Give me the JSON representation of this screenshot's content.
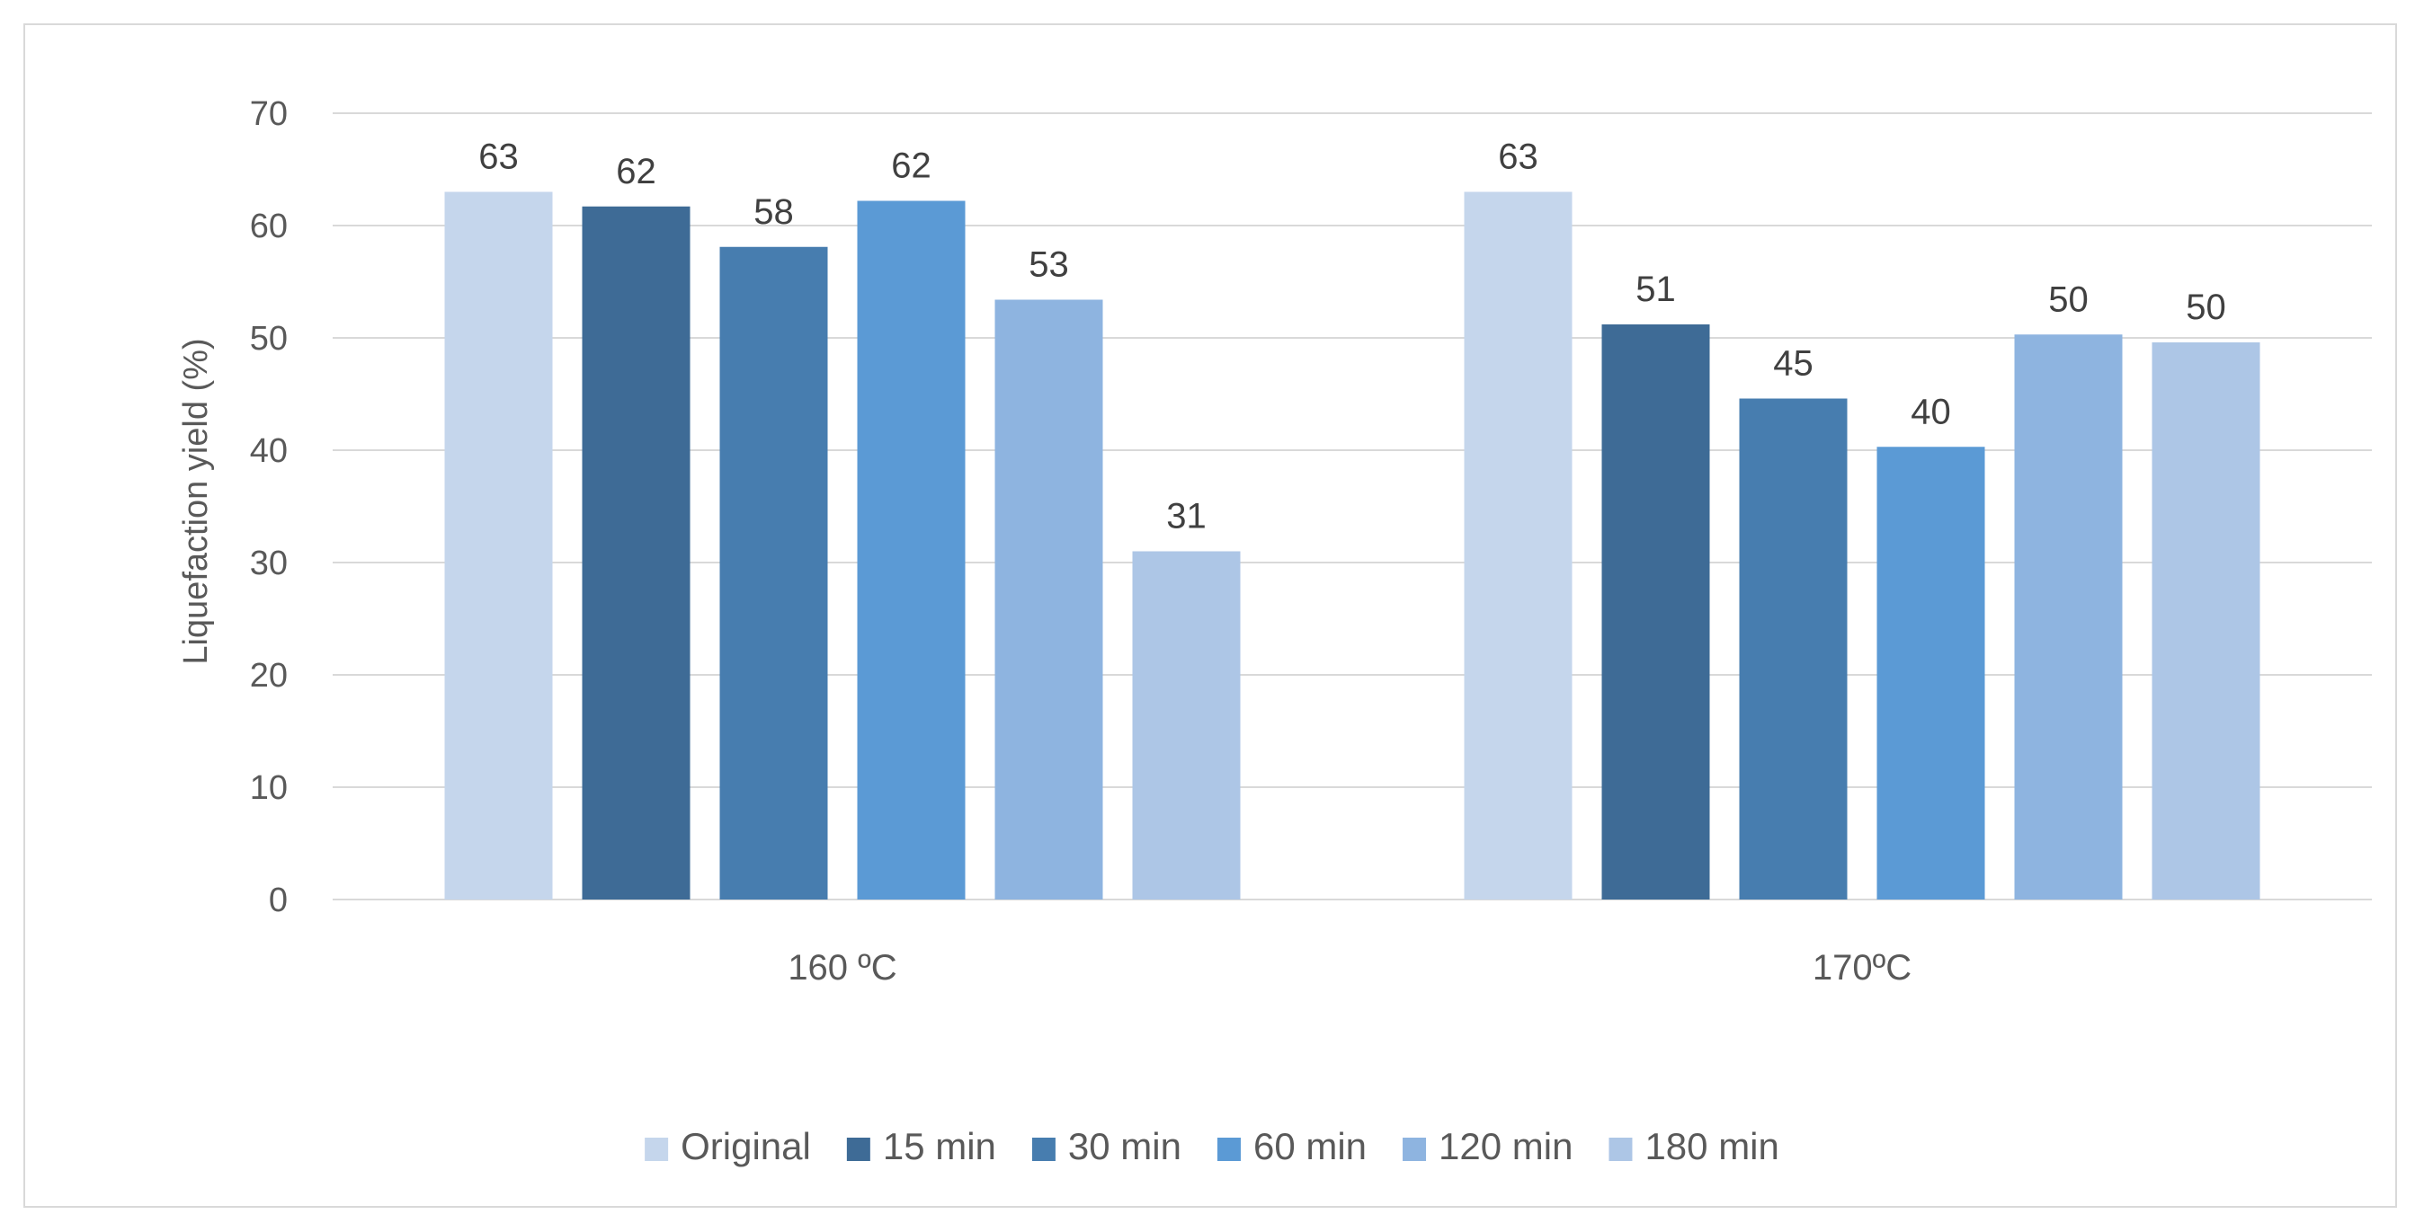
{
  "chart_data": {
    "type": "bar",
    "title": "",
    "xlabel": "",
    "ylabel": "Liquefaction yield (%)",
    "ylim": [
      0,
      70
    ],
    "yticks": [
      0,
      10,
      20,
      30,
      40,
      50,
      60,
      70
    ],
    "grid": true,
    "legend_position": "bottom",
    "categories": [
      "160 ºC",
      "170ºC"
    ],
    "series": [
      {
        "name": "Original",
        "color": "#c5d6ec",
        "values": [
          63,
          63
        ],
        "labels": [
          "63",
          "63"
        ]
      },
      {
        "name": "15 min",
        "color": "#3e6b96",
        "values": [
          61.7,
          51.2
        ],
        "labels": [
          "62",
          "51"
        ]
      },
      {
        "name": "30 min",
        "color": "#477daf",
        "values": [
          58.1,
          44.6
        ],
        "labels": [
          "58",
          "45"
        ]
      },
      {
        "name": "60 min",
        "color": "#5b9ad5",
        "values": [
          62.2,
          40.3
        ],
        "labels": [
          "62",
          "40"
        ]
      },
      {
        "name": "120 min",
        "color": "#8eb4e0",
        "values": [
          53.4,
          50.3
        ],
        "labels": [
          "53",
          "50"
        ]
      },
      {
        "name": "180 min",
        "color": "#adc6e6",
        "values": [
          31.0,
          49.6
        ],
        "labels": [
          "31",
          "50"
        ]
      }
    ]
  },
  "colors": {
    "gridline": "#d9d9d9",
    "frame": "#d9d9d9",
    "text": "#595959"
  }
}
